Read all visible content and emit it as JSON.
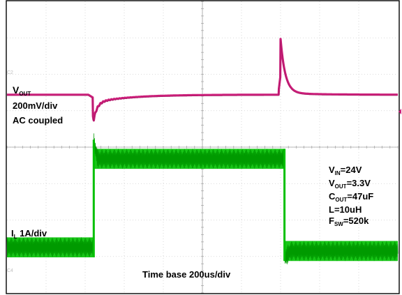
{
  "chart_data": {
    "type": "line",
    "grid": true,
    "x_divisions": 10,
    "y_divisions": 8,
    "timebase_label": "Time base 200us/div",
    "channels": [
      {
        "id": "C2",
        "color": "#cc1f7a",
        "label_main": "V",
        "label_sub": "OUT",
        "scale_label": "200mV/div",
        "coupling_label": "AC coupled",
        "baseline_div": 2.56,
        "events": [
          {
            "time_div": 2.2,
            "type": "undershoot",
            "peak_div": 3.15,
            "decay_div": 0.9
          },
          {
            "time_div": 7.0,
            "type": "overshoot",
            "peak_div": 1.08,
            "decay_div": 0.8
          }
        ]
      },
      {
        "id": "C4",
        "color": "#00c000",
        "label_main": "I",
        "label_sub": "L",
        "scale_label": "1A/div",
        "steps": [
          {
            "t_start_div": 0.0,
            "t_end_div": 2.22,
            "level_div": 6.75
          },
          {
            "t_start_div": 2.22,
            "t_end_div": 7.1,
            "level_div": 4.32
          },
          {
            "t_start_div": 7.1,
            "t_end_div": 10.0,
            "level_div": 6.85
          }
        ],
        "ripple_div": 0.55
      }
    ],
    "conditions": [
      {
        "main": "V",
        "sub": "IN",
        "value": "=24V"
      },
      {
        "main": "V",
        "sub": "OUT",
        "value": "=3.3V"
      },
      {
        "main": "C",
        "sub": "OUT",
        "value": "=47uF"
      },
      {
        "main": "L",
        "sub": "",
        "value": "=10uH"
      },
      {
        "main": "F",
        "sub": "SW",
        "value": "=520k"
      }
    ]
  }
}
